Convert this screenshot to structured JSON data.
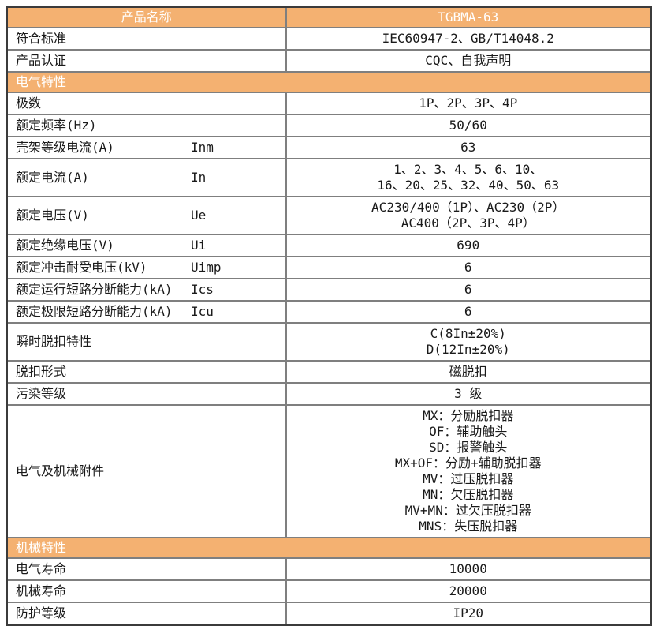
{
  "table": {
    "header": {
      "product_name_label": "产品名称",
      "product_model": "TGBMA-63"
    },
    "rows": [
      {
        "kind": "data",
        "label": "符合标准",
        "symbol": "",
        "values": [
          "IEC60947-2、GB/T14048.2"
        ]
      },
      {
        "kind": "data",
        "label": "产品认证",
        "symbol": "",
        "values": [
          "CQC、自我声明"
        ]
      },
      {
        "kind": "section",
        "label": "电气特性"
      },
      {
        "kind": "data",
        "label": "极数",
        "symbol": "",
        "values": [
          "1P、2P、3P、4P"
        ]
      },
      {
        "kind": "data",
        "label": "额定频率(Hz)",
        "symbol": "",
        "values": [
          "50/60"
        ]
      },
      {
        "kind": "data",
        "label": "壳架等级电流(A)",
        "symbol": "Inm",
        "values": [
          "63"
        ]
      },
      {
        "kind": "data",
        "label": "额定电流(A)",
        "symbol": "In",
        "values": [
          "1、2、3、4、5、6、10、",
          "16、20、25、32、40、50、63"
        ]
      },
      {
        "kind": "data",
        "label": "额定电压(V)",
        "symbol": "Ue",
        "values": [
          "AC230/400（1P）、AC230（2P）",
          "AC400（2P、3P、4P）"
        ]
      },
      {
        "kind": "data",
        "label": "额定绝缘电压(V)",
        "symbol": "Ui",
        "values": [
          "690"
        ]
      },
      {
        "kind": "data",
        "label": "额定冲击耐受电压(kV)",
        "symbol": "Uimp",
        "values": [
          "6"
        ]
      },
      {
        "kind": "data",
        "label": "额定运行短路分断能力(kA)",
        "symbol": "Ics",
        "values": [
          "6"
        ]
      },
      {
        "kind": "data",
        "label": "额定极限短路分断能力(kA)",
        "symbol": "Icu",
        "values": [
          "6"
        ]
      },
      {
        "kind": "data",
        "label": "瞬时脱扣特性",
        "symbol": "",
        "values": [
          "C(8In±20%)",
          "D(12In±20%)"
        ]
      },
      {
        "kind": "data",
        "label": "脱扣形式",
        "symbol": "",
        "values": [
          "磁脱扣"
        ]
      },
      {
        "kind": "data",
        "label": "污染等级",
        "symbol": "",
        "values": [
          "3 级"
        ]
      },
      {
        "kind": "data",
        "label": "电气及机械附件",
        "symbol": "",
        "values": [
          "MX：分励脱扣器",
          "OF：辅助触头",
          "SD：报警触头",
          "MX+OF：分励+辅助脱扣器",
          "MV：过压脱扣器",
          "MN：欠压脱扣器",
          "MV+MN：过欠压脱扣器",
          "MNS：失压脱扣器"
        ]
      },
      {
        "kind": "section",
        "label": "机械特性"
      },
      {
        "kind": "data",
        "label": "电气寿命",
        "symbol": "",
        "values": [
          "10000"
        ]
      },
      {
        "kind": "data",
        "label": "机械寿命",
        "symbol": "",
        "values": [
          "20000"
        ]
      },
      {
        "kind": "data",
        "label": "防护等级",
        "symbol": "",
        "values": [
          "IP20"
        ]
      }
    ]
  },
  "colors": {
    "section_header_background": "#F4B171",
    "section_header_text": "#FFFFFF",
    "inner_border": "#7F7F7F",
    "outer_border": "#3B3B3B",
    "body_text": "#1A1A1A"
  }
}
